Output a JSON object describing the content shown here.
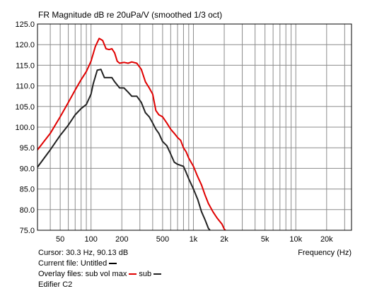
{
  "chart_data": {
    "type": "line",
    "title": "FR Magnitude dB re 20uPa/V (smoothed 1/3 oct)",
    "xlabel": "Frequency (Hz)",
    "ylabel": "",
    "x_scale": "log",
    "xlim": [
      30,
      35000
    ],
    "ylim": [
      75.0,
      125.0
    ],
    "grid": true,
    "x_tick_labels": [
      {
        "value": 50,
        "label": "50"
      },
      {
        "value": 100,
        "label": "100"
      },
      {
        "value": 200,
        "label": "200"
      },
      {
        "value": 500,
        "label": "500"
      },
      {
        "value": 1000,
        "label": "1k"
      },
      {
        "value": 2000,
        "label": "2k"
      },
      {
        "value": 5000,
        "label": "5k"
      },
      {
        "value": 10000,
        "label": "10k"
      },
      {
        "value": 20000,
        "label": "20k"
      }
    ],
    "y_ticks": [
      {
        "value": 75,
        "label": "75.0"
      },
      {
        "value": 80,
        "label": "80.0"
      },
      {
        "value": 85,
        "label": "85.0"
      },
      {
        "value": 90,
        "label": "90.0"
      },
      {
        "value": 95,
        "label": "95.0"
      },
      {
        "value": 100,
        "label": "100.0"
      },
      {
        "value": 105,
        "label": "105.0"
      },
      {
        "value": 110,
        "label": "110.0"
      },
      {
        "value": 115,
        "label": "115.0"
      },
      {
        "value": 120,
        "label": "120.0"
      },
      {
        "value": 125,
        "label": "125.0"
      }
    ],
    "series": [
      {
        "name": "sub vol max",
        "color": "#e00000",
        "points": [
          [
            30,
            94.5
          ],
          [
            40,
            98.5
          ],
          [
            50,
            102.5
          ],
          [
            60,
            106
          ],
          [
            70,
            109
          ],
          [
            80,
            111.5
          ],
          [
            90,
            113.5
          ],
          [
            100,
            116
          ],
          [
            110,
            119.5
          ],
          [
            120,
            121.5
          ],
          [
            130,
            121
          ],
          [
            140,
            119
          ],
          [
            150,
            118.8
          ],
          [
            160,
            119
          ],
          [
            170,
            118
          ],
          [
            180,
            116
          ],
          [
            190,
            115.5
          ],
          [
            210,
            115.7
          ],
          [
            230,
            115.5
          ],
          [
            250,
            115.8
          ],
          [
            280,
            115.5
          ],
          [
            310,
            114
          ],
          [
            340,
            111
          ],
          [
            370,
            109.5
          ],
          [
            400,
            108
          ],
          [
            430,
            104
          ],
          [
            460,
            103
          ],
          [
            500,
            102.5
          ],
          [
            550,
            101
          ],
          [
            600,
            99.5
          ],
          [
            650,
            98.5
          ],
          [
            700,
            97.5
          ],
          [
            750,
            96.8
          ],
          [
            800,
            95
          ],
          [
            850,
            94
          ],
          [
            900,
            92.5
          ],
          [
            1000,
            90.5
          ],
          [
            1100,
            88
          ],
          [
            1200,
            86
          ],
          [
            1300,
            83.5
          ],
          [
            1400,
            81.5
          ],
          [
            1550,
            79.5
          ],
          [
            1700,
            78
          ],
          [
            1900,
            76.5
          ],
          [
            2000,
            75.3
          ],
          [
            2050,
            75
          ]
        ]
      },
      {
        "name": "sub",
        "color": "#222222",
        "points": [
          [
            30,
            90.3
          ],
          [
            40,
            94.5
          ],
          [
            50,
            98
          ],
          [
            60,
            100.5
          ],
          [
            70,
            103
          ],
          [
            80,
            104.5
          ],
          [
            90,
            105.5
          ],
          [
            100,
            108
          ],
          [
            105,
            110.5
          ],
          [
            115,
            113.8
          ],
          [
            125,
            114
          ],
          [
            135,
            112
          ],
          [
            150,
            112
          ],
          [
            160,
            112
          ],
          [
            170,
            111
          ],
          [
            190,
            109.5
          ],
          [
            210,
            109.5
          ],
          [
            230,
            108.5
          ],
          [
            250,
            107.5
          ],
          [
            280,
            107.5
          ],
          [
            310,
            106
          ],
          [
            340,
            103.5
          ],
          [
            370,
            102.5
          ],
          [
            400,
            101
          ],
          [
            430,
            99.5
          ],
          [
            460,
            98.5
          ],
          [
            500,
            96.5
          ],
          [
            550,
            95.5
          ],
          [
            600,
            93.5
          ],
          [
            650,
            91.5
          ],
          [
            700,
            91
          ],
          [
            800,
            90.5
          ],
          [
            850,
            89
          ],
          [
            900,
            87.5
          ],
          [
            1000,
            85
          ],
          [
            1100,
            82.5
          ],
          [
            1200,
            79.5
          ],
          [
            1300,
            77.5
          ],
          [
            1400,
            75.5
          ],
          [
            1450,
            75
          ]
        ]
      }
    ]
  },
  "footer": {
    "cursor": "Cursor: 30.3 Hz, 90.13 dB",
    "current_file_label": "Current file: Untitled",
    "current_file_color": "#000000",
    "overlay_label": "Overlay files: sub vol max",
    "overlay_name_2": "sub",
    "edifier": "Edifier C2"
  }
}
